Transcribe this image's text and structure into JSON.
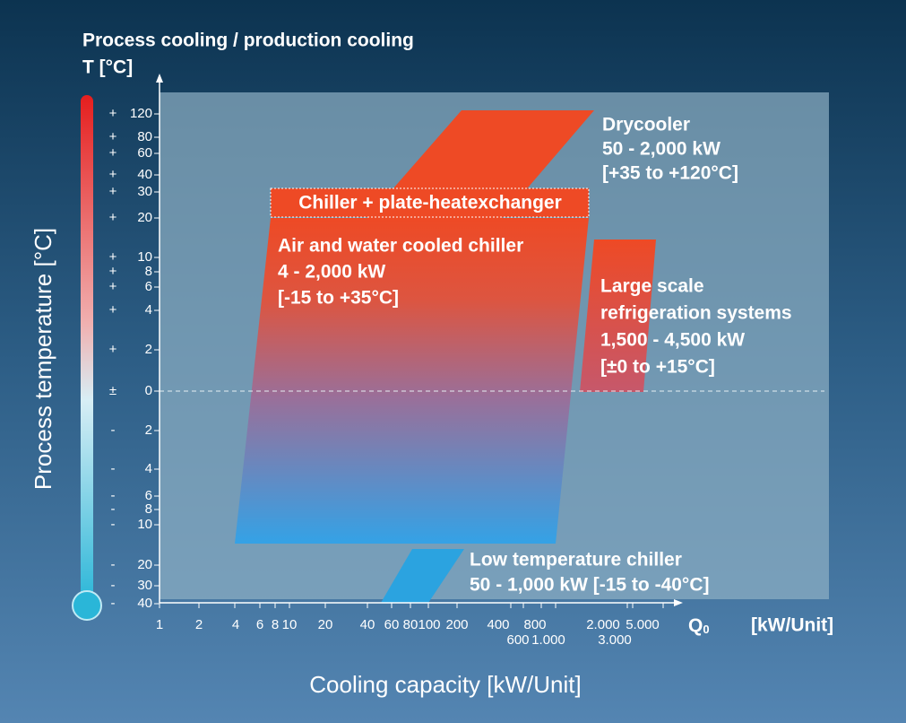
{
  "header": {
    "title": "Process cooling / production cooling",
    "unit": "T [°C]"
  },
  "y_axis": {
    "label": "Process temperature [°C]",
    "ticks": [
      {
        "sign": "+",
        "number": "120"
      },
      {
        "sign": "+",
        "number": "80"
      },
      {
        "sign": "+",
        "number": "60"
      },
      {
        "sign": "+",
        "number": "40"
      },
      {
        "sign": "+",
        "number": "30"
      },
      {
        "sign": "+",
        "number": "20"
      },
      {
        "sign": "+",
        "number": "10"
      },
      {
        "sign": "+",
        "number": "8"
      },
      {
        "sign": "+",
        "number": "6"
      },
      {
        "sign": "+",
        "number": "4"
      },
      {
        "sign": "+",
        "number": "2"
      },
      {
        "sign": "±",
        "number": "0"
      },
      {
        "sign": "-",
        "number": "2"
      },
      {
        "sign": "-",
        "number": "4"
      },
      {
        "sign": "-",
        "number": "6"
      },
      {
        "sign": "-",
        "number": "8"
      },
      {
        "sign": "-",
        "number": "10"
      },
      {
        "sign": "-",
        "number": "20"
      },
      {
        "sign": "-",
        "number": "30"
      },
      {
        "sign": "-",
        "number": "40"
      }
    ]
  },
  "x_axis": {
    "label": "Cooling capacity [kW/Unit]",
    "symbol": "Q",
    "symbol_sub": "0",
    "unit": "[kW/Unit]",
    "ticks": [
      "1",
      "2",
      "4",
      "6",
      "8",
      "10",
      "20",
      "40",
      "60",
      "80",
      "100",
      "200",
      "400",
      "600",
      "800",
      "1.000",
      "2.000",
      "3.000",
      "5.000"
    ]
  },
  "regions": {
    "drycooler": [
      "Drycooler",
      "50 - 2,000 kW",
      "[+35 to +120°C]"
    ],
    "plate": "Chiller + plate-heatexchanger",
    "chiller": [
      "Air and water cooled chiller",
      "4 - 2,000 kW",
      "[-15 to +35°C]"
    ],
    "large": [
      "Large scale",
      "refrigeration systems",
      "1,500 - 4,500 kW",
      "[±0 to +15°C]"
    ],
    "low": [
      "Low temperature chiller",
      "50 - 1,000 kW [-15 to -40°C]"
    ]
  }
}
